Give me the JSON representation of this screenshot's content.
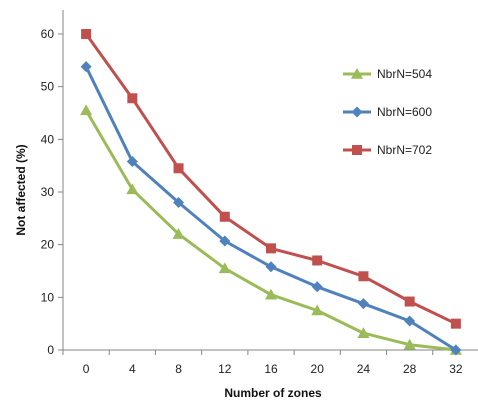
{
  "chart_data": {
    "type": "line",
    "title": "",
    "xlabel": "Number of zones",
    "ylabel": "Not affected (%)",
    "x": [
      0,
      4,
      8,
      12,
      16,
      20,
      24,
      28,
      32
    ],
    "ylim": [
      0,
      60
    ],
    "xticks": [
      "0",
      "4",
      "8",
      "12",
      "16",
      "20",
      "24",
      "28",
      "32"
    ],
    "yticks": [
      "0",
      "10",
      "20",
      "30",
      "40",
      "50",
      "60"
    ],
    "grid": false,
    "legend_position": "right",
    "series": [
      {
        "name": "NbrN=504",
        "color": "#9bbb59",
        "marker": "triangle",
        "values": [
          45.5,
          30.5,
          22,
          15.5,
          10.5,
          7.5,
          3.2,
          1,
          0
        ]
      },
      {
        "name": "NbrN=600",
        "color": "#4f81bd",
        "marker": "diamond",
        "values": [
          53.8,
          35.8,
          28,
          20.7,
          15.8,
          12,
          8.8,
          5.5,
          0
        ]
      },
      {
        "name": "NbrN=702",
        "color": "#c0504d",
        "marker": "square",
        "values": [
          60,
          47.8,
          34.5,
          25.3,
          19.3,
          17,
          14,
          9.2,
          5
        ]
      }
    ]
  }
}
